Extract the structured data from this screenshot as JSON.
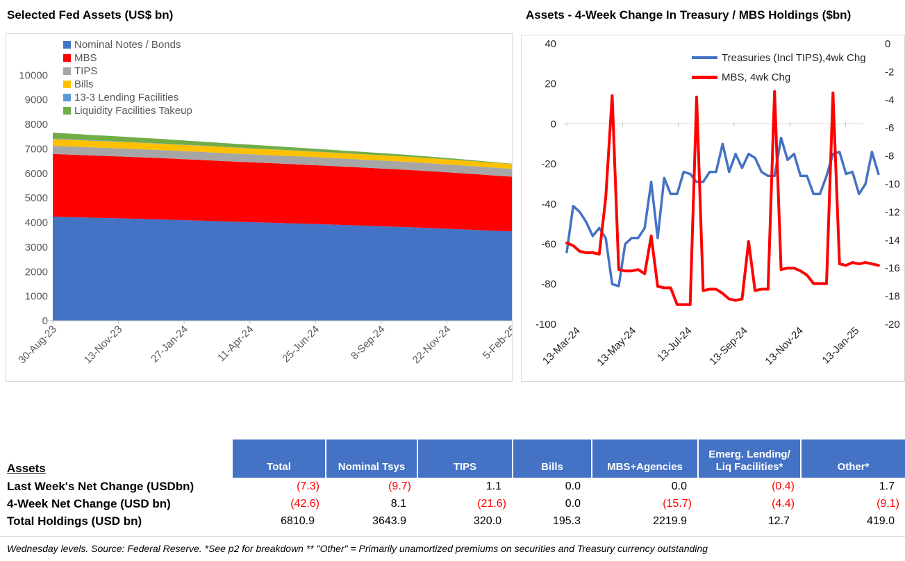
{
  "chart_data": [
    {
      "type": "area",
      "stacked": true,
      "title": "Selected Fed Assets (US$ bn)",
      "ylabel": "",
      "xlabel": "",
      "ylim": [
        0,
        10000
      ],
      "y_ticks": [
        0,
        1000,
        2000,
        3000,
        4000,
        5000,
        6000,
        7000,
        8000,
        9000,
        10000
      ],
      "x_tick_labels": [
        "30-Aug-23",
        "13-Nov-23",
        "27-Jan-24",
        "11-Apr-24",
        "25-Jun-24",
        "8-Sep-24",
        "22-Nov-24",
        "5-Feb-25"
      ],
      "grid": false,
      "legend_position": "top-left-inside",
      "axis_label_color": "#595959",
      "series": [
        {
          "name": "Nominal Notes / Bonds",
          "color": "#4472C4",
          "values": [
            4240,
            4220,
            4200,
            4185,
            4165,
            4145,
            4125,
            4100,
            4080,
            4055,
            4030,
            4010,
            3990,
            3965,
            3945,
            3920,
            3895,
            3870,
            3845,
            3820,
            3790,
            3760,
            3730,
            3700,
            3670,
            3644
          ]
        },
        {
          "name": "MBS",
          "color": "#FF0000",
          "values": [
            2550,
            2542,
            2533,
            2524,
            2515,
            2505,
            2494,
            2483,
            2471,
            2459,
            2447,
            2435,
            2423,
            2411,
            2399,
            2387,
            2375,
            2362,
            2350,
            2337,
            2324,
            2307,
            2288,
            2267,
            2243,
            2220
          ]
        },
        {
          "name": "TIPS",
          "color": "#A6A6A6",
          "values": [
            333,
            332,
            332,
            331,
            331,
            330,
            330,
            329,
            329,
            328,
            328,
            327,
            327,
            326,
            326,
            325,
            325,
            324,
            324,
            323,
            323,
            322,
            322,
            321,
            321,
            320
          ]
        },
        {
          "name": "Bills",
          "color": "#FFC000",
          "values": [
            280,
            276,
            272,
            268,
            264,
            260,
            256,
            252,
            248,
            244,
            241,
            237,
            233,
            230,
            226,
            223,
            220,
            216,
            213,
            210,
            207,
            204,
            201,
            199,
            197,
            195
          ]
        },
        {
          "name": "13-3 Lending Facilities",
          "color": "#5B9BD5",
          "values": [
            22,
            20,
            19,
            17,
            16,
            15,
            13,
            12,
            11,
            10,
            9,
            8,
            8,
            7,
            6,
            6,
            5,
            5,
            4,
            4,
            3,
            3,
            3,
            2,
            2,
            2
          ]
        },
        {
          "name": "Liquidity Facilities Takeup",
          "color": "#70AD47",
          "values": [
            235,
            225,
            215,
            205,
            196,
            188,
            180,
            172,
            164,
            156,
            148,
            140,
            132,
            124,
            116,
            108,
            100,
            92,
            84,
            76,
            68,
            58,
            48,
            38,
            25,
            11
          ]
        }
      ]
    },
    {
      "type": "line",
      "title": "Assets - 4-Week Change In Treasury / MBS Holdings ($bn)",
      "left_ylim": [
        -100,
        40
      ],
      "left_y_ticks": [
        40,
        20,
        0,
        -20,
        -40,
        -60,
        -80,
        -100
      ],
      "right_ylim": [
        -20,
        0
      ],
      "right_y_ticks": [
        0,
        -2,
        -4,
        -6,
        -8,
        -10,
        -12,
        -14,
        -16,
        -18,
        -20
      ],
      "x_tick_labels": [
        "13-Mar-24",
        "13-May-24",
        "13-Jul-24",
        "13-Sep-24",
        "13-Nov-24",
        "13-Jan-25"
      ],
      "grid": "zero-line-only",
      "legend_position": "top-right-inside",
      "axis_label_color": "#262626",
      "series": [
        {
          "name": "Treasuries (Incl TIPS),4wk Chg",
          "axis": "left",
          "color": "#4472C4",
          "values": [
            -64,
            -41,
            -44,
            -49,
            -56,
            -52,
            -57,
            -80,
            -81,
            -60,
            -57,
            -57,
            -52,
            -29,
            -57,
            -27,
            -35,
            -35,
            -24,
            -25,
            -29,
            -29,
            -24,
            -24,
            -10,
            -24,
            -15,
            -22,
            -15,
            -17,
            -24,
            -26,
            -26,
            -7,
            -18,
            -15,
            -26,
            -26,
            -35,
            -35,
            -26,
            -15,
            -14,
            -25,
            -24,
            -35,
            -30,
            -14,
            -25
          ]
        },
        {
          "name": "MBS, 4wk Chg",
          "axis": "right",
          "color": "#FF0000",
          "values": [
            -14.2,
            -14.4,
            -14.8,
            -14.9,
            -14.9,
            -15.0,
            -11.0,
            -3.7,
            -16.1,
            -16.2,
            -16.2,
            -16.1,
            -16.4,
            -13.7,
            -17.3,
            -17.4,
            -17.4,
            -18.6,
            -18.6,
            -18.6,
            -3.8,
            -17.6,
            -17.5,
            -17.5,
            -17.8,
            -18.2,
            -18.3,
            -18.2,
            -14.1,
            -17.6,
            -17.5,
            -17.5,
            -3.4,
            -16.1,
            -16.0,
            -16.0,
            -16.2,
            -16.5,
            -17.1,
            -17.1,
            -17.1,
            -3.5,
            -15.7,
            -15.8,
            -15.6,
            -15.7,
            -15.6,
            -15.7,
            -15.8
          ]
        }
      ]
    }
  ],
  "table": {
    "row_header_title": "Assets",
    "header_bg": "#4472C4",
    "negative_color": "#FF0000",
    "columns": [
      "Total",
      "Nominal Tsys",
      "TIPS",
      "Bills",
      "MBS+Agencies",
      "Emerg. Lending/ Liq Facilities*",
      "Other*"
    ],
    "rows": [
      {
        "label": "Last Week's Net Change (USDbn)",
        "values": [
          "(7.3)",
          "(9.7)",
          "1.1",
          "0.0",
          "0.0",
          "(0.4)",
          "1.7"
        ]
      },
      {
        "label": "4-Week Net Change (USD bn)",
        "values": [
          "(42.6)",
          "8.1",
          "(21.6)",
          "0.0",
          "(15.7)",
          "(4.4)",
          "(9.1)"
        ]
      },
      {
        "label": "Total Holdings (USD bn)",
        "values": [
          "6810.9",
          "3643.9",
          "320.0",
          "195.3",
          "2219.9",
          "12.7",
          "419.0"
        ]
      }
    ]
  },
  "footnote": "Wednesday levels. Source: Federal Reserve. *See p2 for breakdown ** \"Other\" = Primarily unamortized premiums on securities and Treasury currency outstanding"
}
